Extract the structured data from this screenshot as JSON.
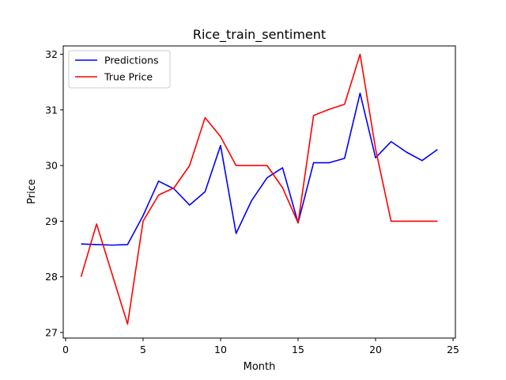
{
  "chart_data": {
    "type": "line",
    "title": "Rice_train_sentiment",
    "xlabel": "Month",
    "ylabel": "Price",
    "xlim": [
      -0.15,
      25.15
    ],
    "ylim": [
      26.9,
      32.15
    ],
    "xticks": [
      0,
      5,
      10,
      15,
      20,
      25
    ],
    "yticks": [
      27,
      28,
      29,
      30,
      31,
      32
    ],
    "grid": false,
    "legend_position": "top-left",
    "x": [
      1,
      2,
      3,
      4,
      5,
      6,
      7,
      8,
      9,
      10,
      11,
      12,
      13,
      14,
      15,
      16,
      17,
      18,
      19,
      20,
      21,
      22,
      23,
      24
    ],
    "series": [
      {
        "name": "Predictions",
        "color": "#0000ff",
        "values": [
          28.59,
          28.58,
          28.57,
          28.58,
          29.1,
          29.72,
          29.58,
          29.29,
          29.53,
          30.36,
          28.78,
          29.37,
          29.78,
          29.96,
          28.97,
          30.05,
          30.05,
          30.13,
          31.3,
          30.14,
          30.43,
          30.24,
          30.09,
          30.29
        ]
      },
      {
        "name": "True Price",
        "color": "#ff0000",
        "values": [
          28.0,
          28.95,
          28.05,
          27.15,
          29.0,
          29.47,
          29.6,
          30.0,
          30.86,
          30.52,
          30.0,
          30.0,
          30.0,
          29.6,
          28.97,
          30.9,
          31.01,
          31.1,
          32.0,
          30.3,
          29.0,
          29.0,
          29.0,
          29.0
        ]
      }
    ]
  }
}
